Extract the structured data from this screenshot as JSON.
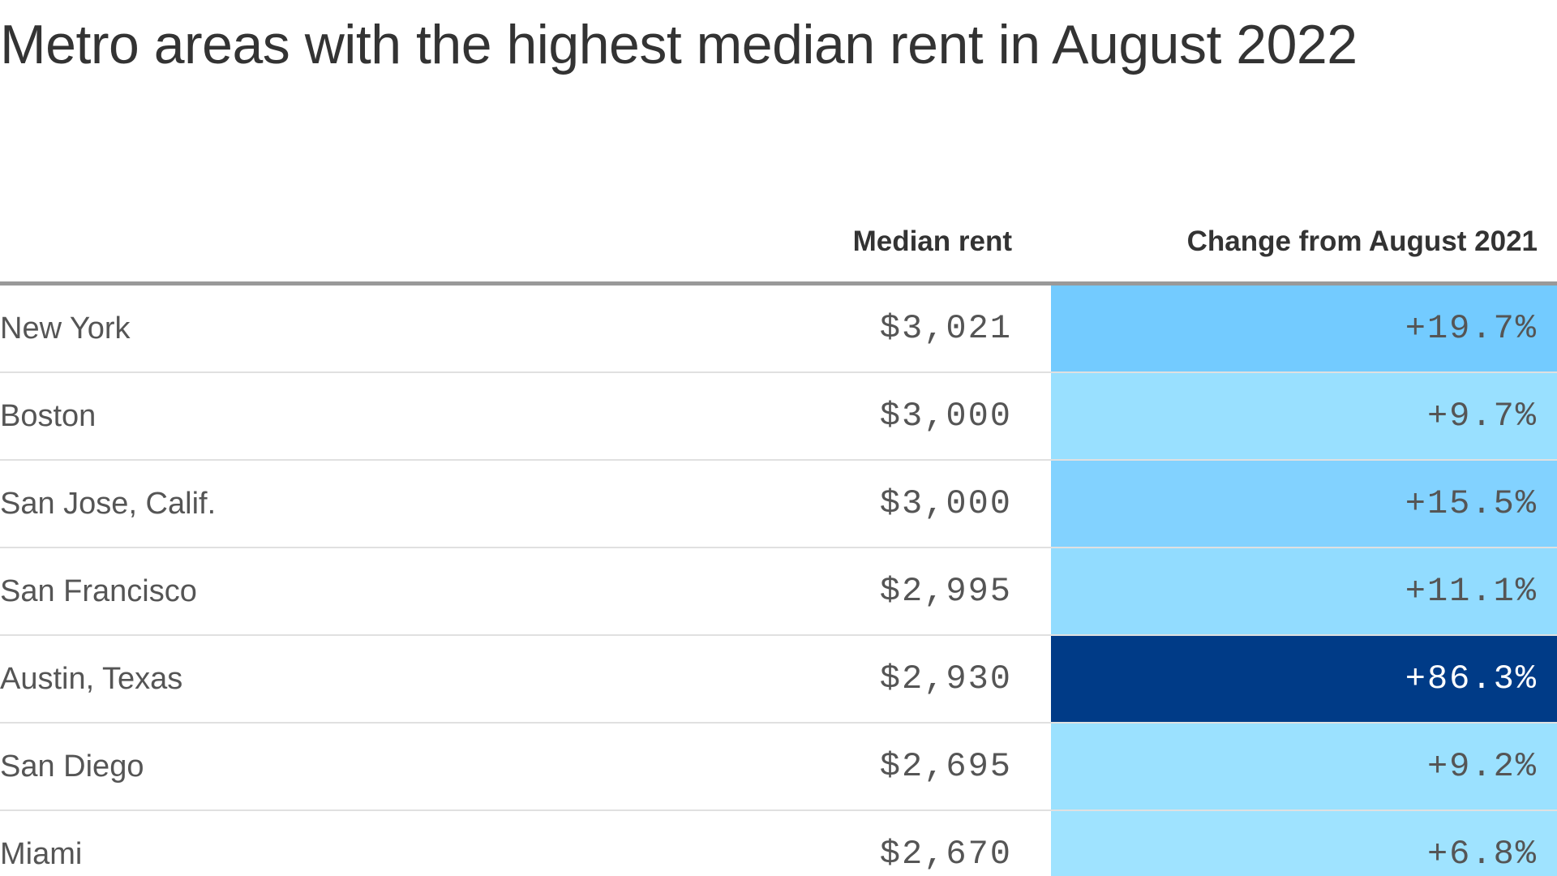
{
  "chart_data": {
    "type": "table",
    "title": "Metro areas with the highest median rent in August 2022",
    "columns": [
      "",
      "Median rent",
      "Change from August 2021"
    ],
    "rows": [
      {
        "metro": "New York",
        "median_rent": "$3,021",
        "change": "+19.7%",
        "change_value": 19.7,
        "cell_color": "#73cbff",
        "text_color": "#555555"
      },
      {
        "metro": "Boston",
        "median_rent": "$3,000",
        "change": "+9.7%",
        "change_value": 9.7,
        "cell_color": "#99e0ff",
        "text_color": "#555555"
      },
      {
        "metro": "San Jose, Calif.",
        "median_rent": "$3,000",
        "change": "+15.5%",
        "change_value": 15.5,
        "cell_color": "#82d2ff",
        "text_color": "#555555"
      },
      {
        "metro": "San Francisco",
        "median_rent": "$2,995",
        "change": "+11.1%",
        "change_value": 11.1,
        "cell_color": "#92dcff",
        "text_color": "#555555"
      },
      {
        "metro": "Austin, Texas",
        "median_rent": "$2,930",
        "change": "+86.3%",
        "change_value": 86.3,
        "cell_color": "#003b87",
        "text_color": "#ffffff"
      },
      {
        "metro": "San Diego",
        "median_rent": "$2,695",
        "change": "+9.2%",
        "change_value": 9.2,
        "cell_color": "#9be1ff",
        "text_color": "#555555"
      },
      {
        "metro": "Miami",
        "median_rent": "$2,670",
        "change": "+6.8%",
        "change_value": 6.8,
        "cell_color": "#9fe3ff",
        "text_color": "#555555"
      }
    ]
  }
}
